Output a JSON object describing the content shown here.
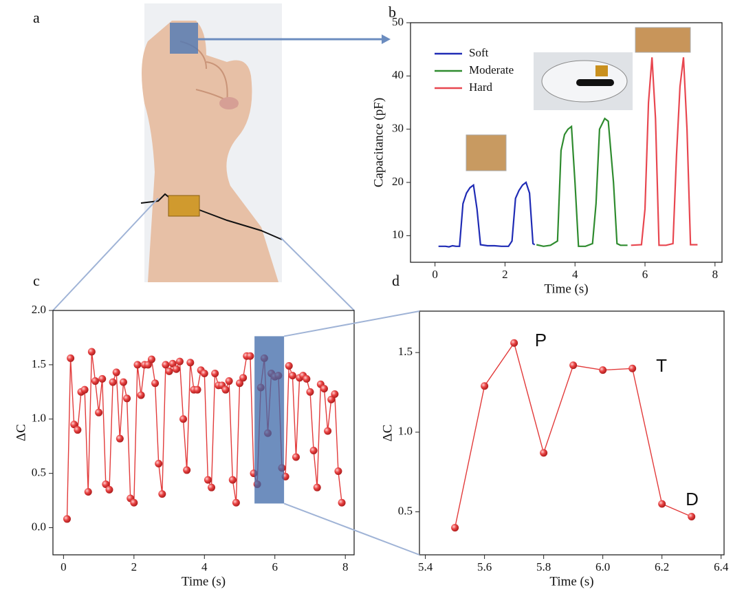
{
  "photo_panel": {
    "label": "a"
  },
  "chart_data": [
    {
      "type": "line",
      "panel_label": "b",
      "xlabel": "Time (s)",
      "ylabel": "Capacitance (pF)",
      "xlim": [
        -0.7,
        8.2
      ],
      "xticks": [
        0,
        2,
        4,
        6,
        8
      ],
      "ylim": [
        5,
        50
      ],
      "yticks": [
        10,
        20,
        30,
        40,
        50
      ],
      "legend": "upper left",
      "series": [
        {
          "name": "Soft",
          "color": "#1f2bb5",
          "x": [
            0.1,
            0.3,
            0.4,
            0.5,
            0.6,
            0.7,
            0.8,
            0.9,
            1.0,
            1.1,
            1.2,
            1.3,
            1.5,
            1.7,
            1.9,
            2.1,
            2.2,
            2.3,
            2.4,
            2.5,
            2.6,
            2.7,
            2.8,
            2.85
          ],
          "values": [
            8,
            8,
            7.9,
            8.1,
            8,
            8,
            16,
            18,
            19,
            19.5,
            15,
            8.3,
            8.1,
            8.1,
            8,
            8,
            9,
            17,
            18.5,
            19.5,
            20,
            18,
            8.5,
            8.3
          ]
        },
        {
          "name": "Moderate",
          "color": "#2e8b2e",
          "x": [
            2.9,
            3.1,
            3.3,
            3.5,
            3.6,
            3.7,
            3.8,
            3.9,
            4.0,
            4.1,
            4.3,
            4.5,
            4.6,
            4.7,
            4.85,
            4.95,
            5.1,
            5.2,
            5.3,
            5.5
          ],
          "values": [
            8.3,
            8,
            8.2,
            9,
            26,
            29,
            30,
            30.5,
            20,
            8,
            8,
            8.5,
            16,
            30,
            32,
            31.5,
            20,
            8.5,
            8.2,
            8.2
          ]
        },
        {
          "name": "Hard",
          "color": "#e8464f",
          "x": [
            5.6,
            5.9,
            6.0,
            6.1,
            6.2,
            6.3,
            6.4,
            6.6,
            6.8,
            6.9,
            7.0,
            7.1,
            7.2,
            7.3,
            7.5
          ],
          "values": [
            8.2,
            8.3,
            15,
            35,
            43.5,
            32,
            8.2,
            8.2,
            8.5,
            25,
            38,
            43.5,
            30,
            8.3,
            8.3
          ]
        }
      ]
    },
    {
      "type": "line",
      "panel_label": "c",
      "xlabel": "Time (s)",
      "ylabel": "ΔC",
      "color": "#e23a3a",
      "markers": true,
      "xlim": [
        -0.3,
        8.25
      ],
      "xticks": [
        0,
        2,
        4,
        6,
        8
      ],
      "ylim": [
        -0.25,
        2.0
      ],
      "yticks": [
        {
          "value": 0,
          "label": "0.0"
        },
        0.5,
        {
          "value": 1,
          "label": "1.0"
        },
        1.5,
        {
          "value": 2,
          "label": "2.0"
        }
      ],
      "x": [
        0.1,
        0.2,
        0.3,
        0.4,
        0.5,
        0.6,
        0.7,
        0.8,
        0.9,
        1.0,
        1.1,
        1.2,
        1.3,
        1.4,
        1.5,
        1.6,
        1.7,
        1.8,
        1.9,
        2.0,
        2.1,
        2.2,
        2.3,
        2.4,
        2.5,
        2.6,
        2.7,
        2.8,
        2.9,
        3.0,
        3.1,
        3.2,
        3.3,
        3.4,
        3.5,
        3.6,
        3.7,
        3.8,
        3.9,
        4.0,
        4.1,
        4.2,
        4.3,
        4.4,
        4.5,
        4.6,
        4.7,
        4.8,
        4.9,
        5.0,
        5.1,
        5.2,
        5.3,
        5.4,
        5.5,
        5.6,
        5.7,
        5.8,
        5.9,
        6.0,
        6.1,
        6.2,
        6.3,
        6.4,
        6.5,
        6.6,
        6.7,
        6.8,
        6.9,
        7.0,
        7.1,
        7.2,
        7.3,
        7.4,
        7.5,
        7.6,
        7.7,
        7.8,
        7.9
      ],
      "values": [
        0.08,
        1.56,
        0.95,
        0.9,
        1.25,
        1.27,
        0.33,
        1.62,
        1.35,
        1.06,
        1.37,
        0.4,
        0.35,
        1.34,
        1.43,
        0.82,
        1.34,
        1.19,
        0.27,
        0.23,
        1.5,
        1.22,
        1.5,
        1.5,
        1.55,
        1.33,
        0.59,
        0.31,
        1.5,
        1.44,
        1.51,
        1.46,
        1.53,
        1.0,
        0.53,
        1.52,
        1.27,
        1.27,
        1.45,
        1.42,
        0.44,
        0.37,
        1.42,
        1.31,
        1.31,
        1.27,
        1.35,
        0.44,
        0.23,
        1.33,
        1.38,
        1.58,
        1.58,
        0.5,
        0.4,
        1.29,
        1.56,
        0.87,
        1.42,
        1.39,
        1.4,
        0.55,
        0.47,
        1.49,
        1.4,
        0.65,
        1.38,
        1.4,
        1.37,
        1.25,
        0.71,
        0.37,
        1.32,
        1.28,
        0.89,
        1.18,
        1.23,
        0.52,
        0.23
      ]
    },
    {
      "type": "line",
      "panel_label": "d",
      "xlabel": "Time (s)",
      "ylabel": "ΔC",
      "color": "#e23a3a",
      "markers": true,
      "xlim": [
        5.38,
        6.41
      ],
      "xticks": [
        5.4,
        5.6,
        5.8,
        {
          "value": 6,
          "label": "6.0"
        },
        6.2,
        6.4
      ],
      "ylim": [
        0.23,
        1.76
      ],
      "yticks": [
        0.5,
        {
          "value": 1,
          "label": "1.0"
        },
        1.5
      ],
      "x": [
        5.5,
        5.6,
        5.7,
        5.8,
        5.9,
        6.0,
        6.1,
        6.2,
        6.3
      ],
      "values": [
        0.4,
        1.29,
        1.56,
        0.87,
        1.42,
        1.39,
        1.4,
        0.55,
        0.47
      ],
      "annotations": [
        {
          "text": "P",
          "x": 5.77,
          "y": 1.57
        },
        {
          "text": "T",
          "x": 6.18,
          "y": 1.41
        },
        {
          "text": "D",
          "x": 6.28,
          "y": 0.57
        }
      ]
    }
  ]
}
